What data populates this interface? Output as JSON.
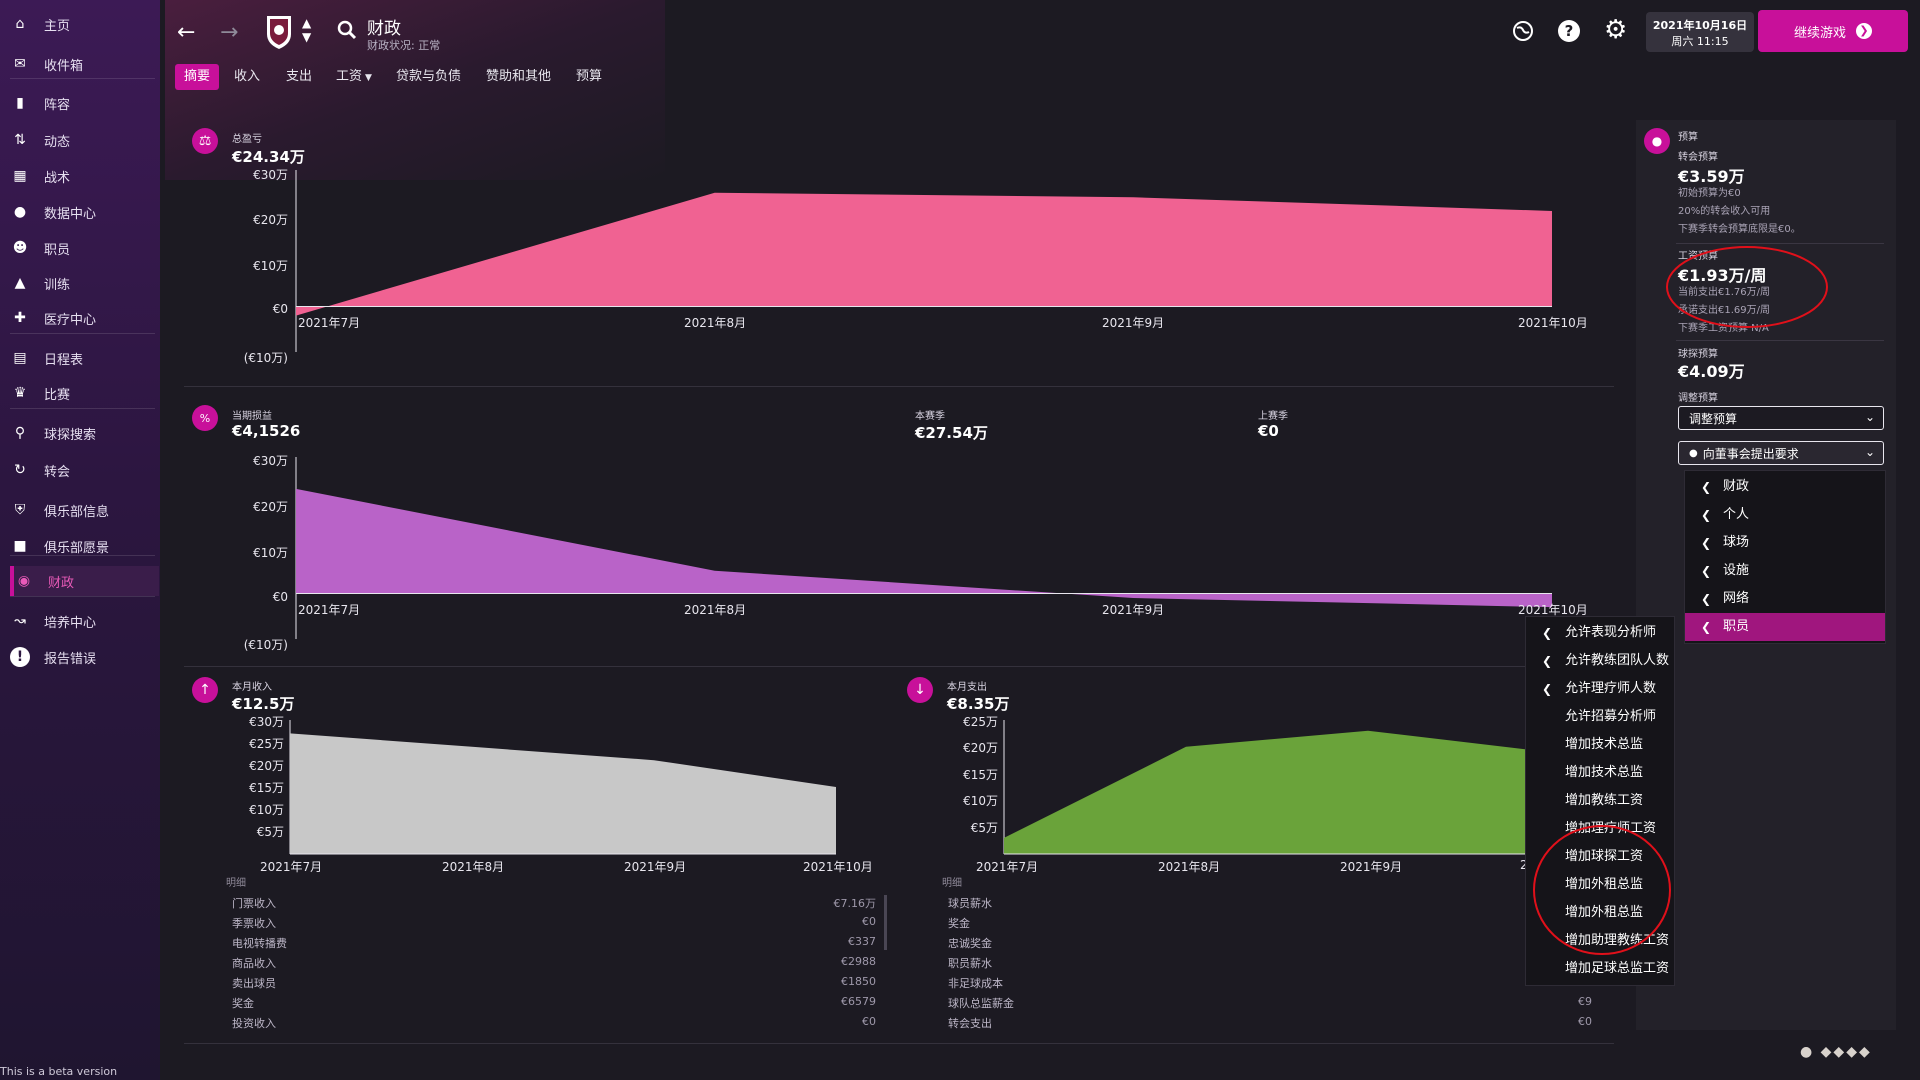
{
  "sidebar": {
    "items": [
      {
        "label": "主页",
        "icon": "home-icon"
      },
      {
        "label": "收件箱",
        "icon": "inbox-icon"
      },
      {
        "label": "阵容",
        "icon": "shirt-icon"
      },
      {
        "label": "动态",
        "icon": "dynamics-icon"
      },
      {
        "label": "战术",
        "icon": "tactics-icon"
      },
      {
        "label": "数据中心",
        "icon": "data-hub-icon"
      },
      {
        "label": "职员",
        "icon": "staff-icon"
      },
      {
        "label": "训练",
        "icon": "training-icon"
      },
      {
        "label": "医疗中心",
        "icon": "medical-icon"
      },
      {
        "label": "日程表",
        "icon": "calendar-icon"
      },
      {
        "label": "比赛",
        "icon": "trophy-icon"
      },
      {
        "label": "球探搜索",
        "icon": "search-icon"
      },
      {
        "label": "转会",
        "icon": "transfer-icon"
      },
      {
        "label": "俱乐部信息",
        "icon": "shield-icon"
      },
      {
        "label": "俱乐部愿景",
        "icon": "vision-icon"
      },
      {
        "label": "财政",
        "icon": "finance-icon"
      },
      {
        "label": "培养中心",
        "icon": "development-icon"
      },
      {
        "label": "报告错误",
        "icon": "report-bug-icon"
      }
    ],
    "active": "财政",
    "beta_text": "This is a beta version"
  },
  "header": {
    "title": "财政",
    "subtitle": "财政状况: 正常",
    "date_line1": "2021年10月16日",
    "date_line2": "周六 11:15",
    "continue_label": "继续游戏"
  },
  "tabs": [
    "摘要",
    "收入",
    "支出",
    "工资",
    "贷款与负债",
    "赞助和其他",
    "预算"
  ],
  "active_tab": "摘要",
  "overview": {
    "label": "总盈亏",
    "value": "€24.34万",
    "y_ticks": [
      "€30万",
      "€20万",
      "€10万",
      "€0",
      "(€10万)"
    ],
    "x_ticks": [
      "2021年7月",
      "2021年8月",
      "2021年9月",
      "2021年10月"
    ]
  },
  "period": {
    "label": "当期损益",
    "value": "€4,1526",
    "this_season_label": "本赛季",
    "this_season_value": "€27.54万",
    "last_season_label": "上赛季",
    "last_season_value": "€0",
    "y_ticks": [
      "€30万",
      "€20万",
      "€10万",
      "€0",
      "(€10万)"
    ],
    "x_ticks": [
      "2021年7月",
      "2021年8月",
      "2021年9月",
      "2021年10月"
    ]
  },
  "income": {
    "label": "本月收入",
    "value": "€12.5万",
    "y_ticks": [
      "€30万",
      "€25万",
      "€20万",
      "€15万",
      "€10万",
      "€5万"
    ],
    "x_ticks": [
      "2021年7月",
      "2021年8月",
      "2021年9月",
      "2021年10月"
    ],
    "detail_title": "明细",
    "details": [
      {
        "name": "门票收入",
        "value": "€7.16万"
      },
      {
        "name": "季票收入",
        "value": "€0"
      },
      {
        "name": "电视转播费",
        "value": "€337"
      },
      {
        "name": "商品收入",
        "value": "€2988"
      },
      {
        "name": "卖出球员",
        "value": "€1850"
      },
      {
        "name": "奖金",
        "value": "€6579"
      },
      {
        "name": "投资收入",
        "value": "€0"
      }
    ]
  },
  "expense": {
    "label": "本月支出",
    "value": "€8.35万",
    "y_ticks": [
      "€25万",
      "€20万",
      "€15万",
      "€10万",
      "€5万"
    ],
    "x_ticks": [
      "2021年7月",
      "2021年8月",
      "2021年9月",
      "2"
    ],
    "detail_title": "明细",
    "details": [
      {
        "name": "球员薪水",
        "value": ""
      },
      {
        "name": "奖金",
        "value": ""
      },
      {
        "name": "忠诚奖金",
        "value": ""
      },
      {
        "name": "职员薪水",
        "value": ""
      },
      {
        "name": "非足球成本",
        "value": ""
      },
      {
        "name": "球队总监薪金",
        "value": "€9"
      },
      {
        "name": "转会支出",
        "value": "€0"
      }
    ]
  },
  "budget": {
    "title": "预算",
    "transfer_label": "转会预算",
    "transfer_value": "€3.59万",
    "transfer_note1": "初始预算为€0",
    "transfer_note2": "20%的转会收入可用",
    "transfer_note3": "下赛季转会预算底限是€0。",
    "wage_label": "工资预算",
    "wage_value": "€1.93万/周",
    "wage_note1": "当前支出€1.76万/周",
    "wage_note2": "承诺支出€1.69万/周",
    "wage_note3": "下赛季工资预算 N/A",
    "scout_label": "球探预算",
    "scout_value": "€4.09万",
    "adjust_label": "调整预算",
    "adjust_dropdown": "调整预算",
    "request_dropdown": "向董事会提出要求"
  },
  "request_menu": [
    "财政",
    "个人",
    "球场",
    "设施",
    "网络",
    "职员"
  ],
  "request_menu_selected": "职员",
  "staff_submenu": [
    {
      "label": "允许表现分析师",
      "arrow": true
    },
    {
      "label": "允许教练团队人数",
      "arrow": true
    },
    {
      "label": "允许理疗师人数",
      "arrow": true
    },
    {
      "label": "允许招募分析师",
      "arrow": false
    },
    {
      "label": "增加技术总监",
      "arrow": false
    },
    {
      "label": "增加技术总监",
      "arrow": false
    },
    {
      "label": "增加教练工资",
      "arrow": false
    },
    {
      "label": "增加理疗师工资",
      "arrow": false
    },
    {
      "label": "增加球探工资",
      "arrow": false
    },
    {
      "label": "增加外租总监",
      "arrow": false
    },
    {
      "label": "增加外租总监",
      "arrow": false
    },
    {
      "label": "增加助理教练工资",
      "arrow": false
    },
    {
      "label": "增加足球总监工资",
      "arrow": false
    }
  ],
  "chart_data": [
    {
      "type": "area",
      "title": "总盈亏",
      "x": [
        "2021年7月",
        "2021年8月",
        "2021年9月",
        "2021年10月"
      ],
      "series": [
        {
          "values": [
            -2,
            25,
            24,
            21
          ]
        }
      ],
      "ylim": [
        -10,
        30
      ],
      "unit": "万€",
      "color": "#f06292"
    },
    {
      "type": "area",
      "title": "当期损益",
      "x": [
        "2021年7月",
        "2021年8月",
        "2021年9月",
        "2021年10月"
      ],
      "series": [
        {
          "values": [
            23,
            5,
            -1,
            -3
          ]
        }
      ],
      "ylim": [
        -10,
        30
      ],
      "unit": "万€",
      "color": "#b963c8"
    },
    {
      "type": "area",
      "title": "本月收入",
      "x": [
        "2021年7月",
        "2021年8月",
        "2021年9月",
        "2021年10月"
      ],
      "series": [
        {
          "values": [
            27,
            24,
            21,
            15
          ]
        }
      ],
      "ylim": [
        0,
        30
      ],
      "unit": "万€",
      "color": "#c8c8c8"
    },
    {
      "type": "area",
      "title": "本月支出",
      "x": [
        "2021年7月",
        "2021年8月",
        "2021年9月",
        "2021年10月"
      ],
      "series": [
        {
          "values": [
            3,
            20,
            23,
            19
          ]
        }
      ],
      "ylim": [
        0,
        25
      ],
      "unit": "万€",
      "color": "#6aa33a"
    }
  ]
}
